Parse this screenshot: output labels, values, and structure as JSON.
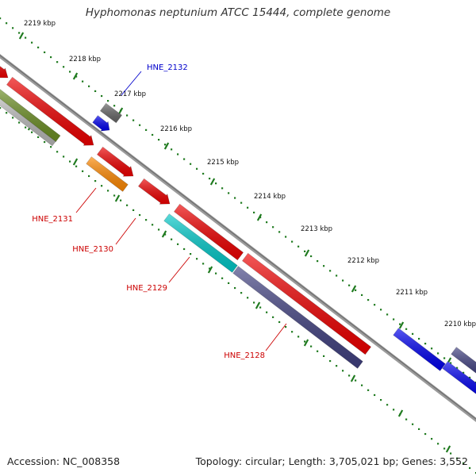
{
  "title": "Hyphomonas neptunium ATCC 15444, complete genome",
  "footer": {
    "accession": "Accession: NC_008358",
    "summary": "Topology: circular; Length: 3,705,021 bp; Genes: 3,552"
  },
  "colors": {
    "backbone": "#8a8a8a",
    "tick": "#1f7a1f",
    "label_red": "#cc0000",
    "label_blue": "#0000cc"
  },
  "scale_labels": [
    {
      "text": "2219 kbp"
    },
    {
      "text": "2218 kbp"
    },
    {
      "text": "2217 kbp"
    },
    {
      "text": "2216 kbp"
    },
    {
      "text": "2215 kbp"
    },
    {
      "text": "2214 kbp"
    },
    {
      "text": "2213 kbp"
    },
    {
      "text": "2212 kbp"
    },
    {
      "text": "2211 kbp"
    },
    {
      "text": "2210 kbp"
    }
  ],
  "gene_labels": [
    {
      "text": "HNE_2132",
      "color": "blue"
    },
    {
      "text": "HNE_2131",
      "color": "red"
    },
    {
      "text": "HNE_2130",
      "color": "red"
    },
    {
      "text": "HNE_2129",
      "color": "red"
    },
    {
      "text": "HNE_2128",
      "color": "red"
    }
  ],
  "features": [
    {
      "color": "#ee0000"
    },
    {
      "color": "#ee0000"
    },
    {
      "color": "#6b8e23"
    },
    {
      "color": "#b8b8b8"
    },
    {
      "color": "#666666"
    },
    {
      "color": "#0000ee"
    },
    {
      "color": "#ee0000"
    },
    {
      "color": "#ff8800"
    },
    {
      "color": "#ee0000"
    },
    {
      "color": "#ee0000"
    },
    {
      "color": "#00c8c8"
    },
    {
      "color": "#ee0000"
    },
    {
      "color": "#404080"
    },
    {
      "color": "#0000ee"
    },
    {
      "color": "#404080"
    },
    {
      "color": "#0000ee"
    }
  ]
}
